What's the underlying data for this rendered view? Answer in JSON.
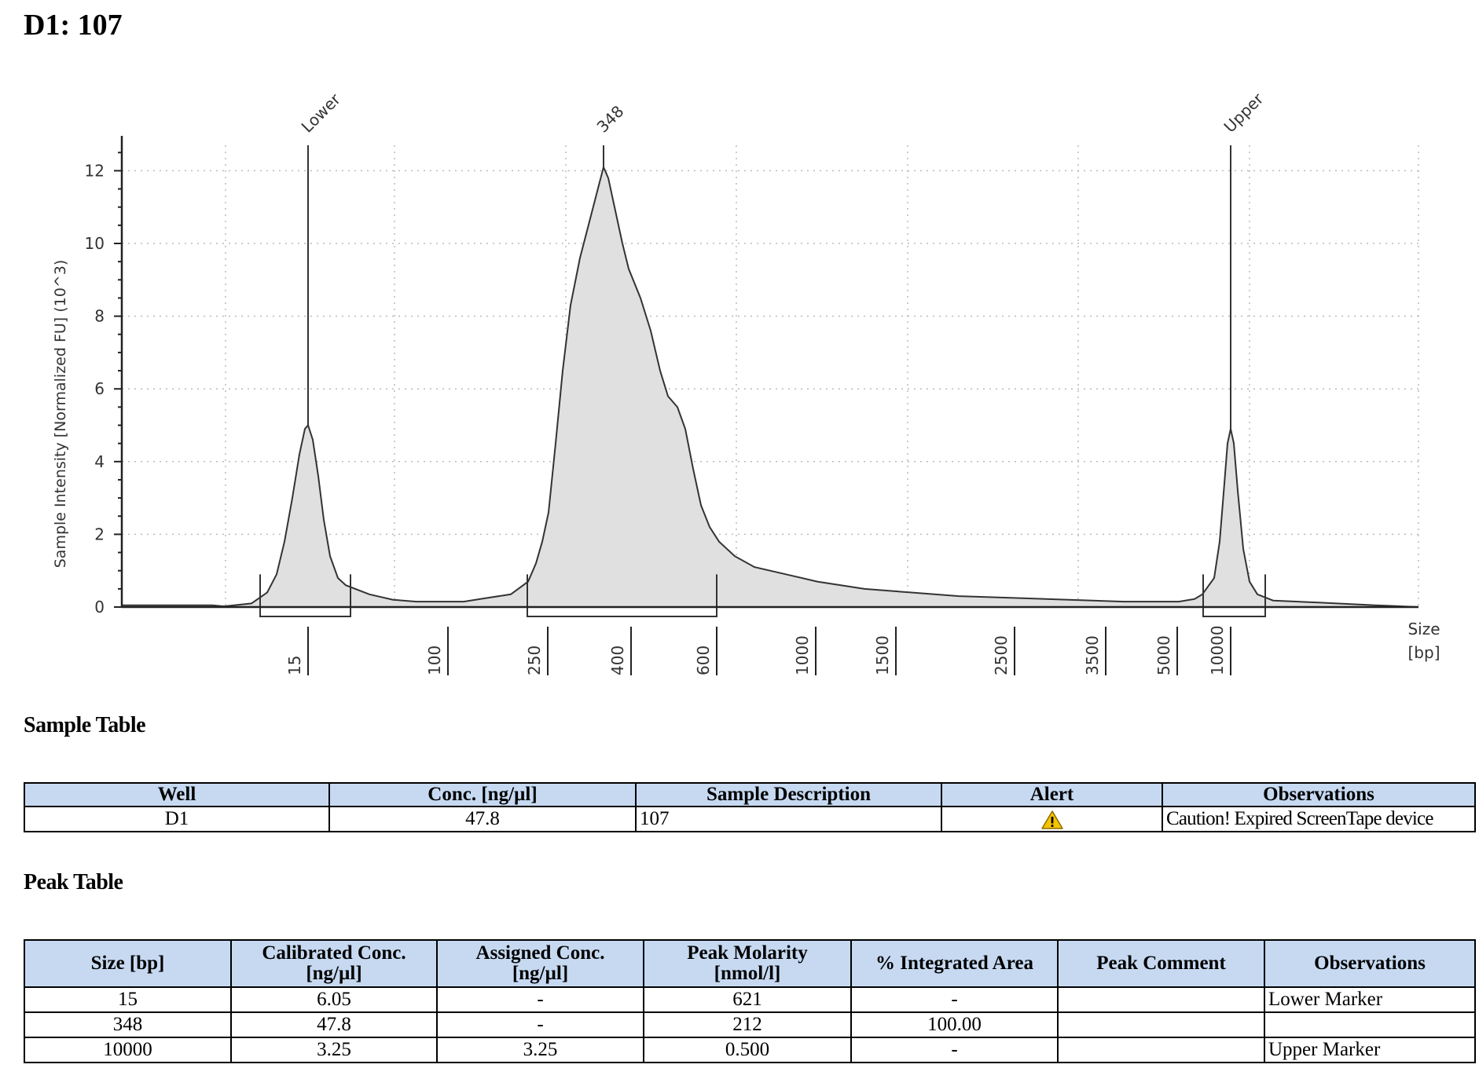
{
  "page": {
    "title": "D1: 107"
  },
  "chart_data": {
    "type": "area",
    "ylabel": "Sample Intensity [Normalized FU] (10^3)",
    "xlabel": "Size\n[bp]",
    "xlabel_line1": "Size",
    "xlabel_line2": "[bp]",
    "ylim": [
      0,
      12.7
    ],
    "y_ticks": [
      0,
      2,
      4,
      6,
      8,
      10,
      12
    ],
    "grid": true,
    "x_tick_labels": [
      "15",
      "100",
      "250",
      "400",
      "600",
      "1000",
      "1500",
      "2500",
      "3500",
      "5000",
      "10000"
    ],
    "x_scale": "sizing ladder (non-linear)",
    "peak_labels": [
      "Lower",
      "348",
      "Upper"
    ],
    "peaks": [
      {
        "label": "Lower",
        "size_bp": 15,
        "height": 5.0
      },
      {
        "label": "348",
        "size_bp": 348,
        "height": 12.1
      },
      {
        "label": "Upper",
        "size_bp": 10000,
        "height": 4.9
      }
    ],
    "fill_color": "#e0e0e0",
    "line_color": "#333333"
  },
  "sample_table": {
    "title": "Sample Table",
    "headers": [
      "Well",
      "Conc. [ng/µl]",
      "Sample Description",
      "Alert",
      "Observations"
    ],
    "rows": [
      {
        "well": "D1",
        "conc": "47.8",
        "description": "107",
        "alert": "warning-icon",
        "observations": "Caution! Expired ScreenTape device"
      }
    ]
  },
  "peak_table": {
    "title": "Peak Table",
    "headers": {
      "size": "Size [bp]",
      "cal_conc_1": "Calibrated Conc.",
      "cal_conc_2": "[ng/µl]",
      "assigned_1": "Assigned Conc.",
      "assigned_2": "[ng/µl]",
      "molarity_1": "Peak Molarity",
      "molarity_2": "[nmol/l]",
      "area": "% Integrated Area",
      "comment": "Peak Comment",
      "observations": "Observations"
    },
    "rows": [
      {
        "size": "15",
        "cal_conc": "6.05",
        "assigned": "-",
        "molarity": "621",
        "area": "-",
        "comment": "",
        "observations": "Lower Marker"
      },
      {
        "size": "348",
        "cal_conc": "47.8",
        "assigned": "-",
        "molarity": "212",
        "area": "100.00",
        "comment": "",
        "observations": ""
      },
      {
        "size": "10000",
        "cal_conc": "3.25",
        "assigned": "3.25",
        "molarity": "0.500",
        "area": "-",
        "comment": "",
        "observations": "Upper Marker"
      }
    ]
  },
  "colors": {
    "header_bg": "#c6d9f1",
    "warning": "#f5c400"
  }
}
